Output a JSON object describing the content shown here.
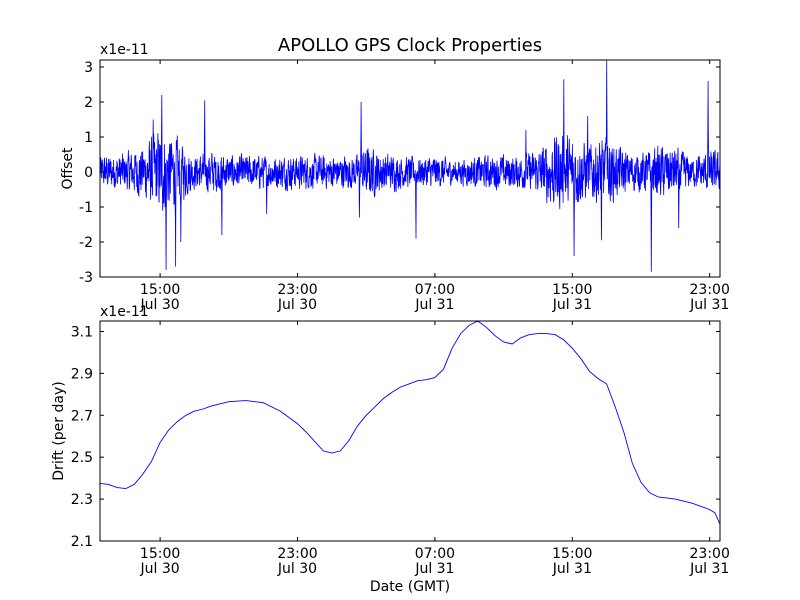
{
  "figure": {
    "title": "APOLLO GPS Clock Properties",
    "line_color": "#0000ff"
  },
  "chart_data": [
    {
      "type": "line",
      "title": "APOLLO GPS Clock Properties",
      "xlabel": "",
      "ylabel": "Offset",
      "scale_label": "x1e-11",
      "ylim": [
        -3,
        3.2
      ],
      "yticks": [
        -3,
        -2,
        -1,
        0,
        1,
        2,
        3
      ],
      "xlim": [
        11.5,
        47.6
      ],
      "xticks": [
        {
          "x": 15,
          "time": "15:00",
          "date": "Jul 30"
        },
        {
          "x": 23,
          "time": "23:00",
          "date": "Jul 30"
        },
        {
          "x": 31,
          "time": "07:00",
          "date": "Jul 31"
        },
        {
          "x": 39,
          "time": "15:00",
          "date": "Jul 31"
        },
        {
          "x": 47,
          "time": "23:00",
          "date": "Jul 31"
        }
      ],
      "series": [
        {
          "name": "Offset",
          "noise": {
            "x": [
              11.5,
              13.0,
              14.0,
              15.0,
              16.0,
              17.0,
              18.0,
              19.0,
              21.0,
              23.0,
              25.0,
              26.5,
              27.0,
              28.0,
              30.0,
              31.0,
              32.0,
              34.0,
              36.0,
              37.0,
              38.0,
              39.0,
              40.0,
              41.0,
              42.0,
              43.0,
              44.0,
              45.0,
              46.0,
              47.0,
              47.6
            ],
            "amplitude": [
              0.35,
              0.4,
              0.55,
              0.9,
              0.7,
              0.35,
              0.45,
              0.35,
              0.35,
              0.35,
              0.35,
              0.35,
              0.55,
              0.4,
              0.3,
              0.35,
              0.25,
              0.35,
              0.35,
              0.45,
              0.8,
              0.75,
              0.6,
              0.7,
              0.45,
              0.4,
              0.55,
              0.5,
              0.3,
              0.45,
              0.4
            ]
          },
          "spikes": [
            {
              "x": 14.6,
              "y": 1.5
            },
            {
              "x": 15.1,
              "y": 2.2
            },
            {
              "x": 15.35,
              "y": -2.8
            },
            {
              "x": 15.9,
              "y": -2.7
            },
            {
              "x": 16.2,
              "y": -2.0
            },
            {
              "x": 17.6,
              "y": 2.05
            },
            {
              "x": 18.6,
              "y": -1.8
            },
            {
              "x": 21.2,
              "y": -1.2
            },
            {
              "x": 26.7,
              "y": 2.0
            },
            {
              "x": 26.6,
              "y": -1.3
            },
            {
              "x": 29.9,
              "y": -1.9
            },
            {
              "x": 36.3,
              "y": 1.2
            },
            {
              "x": 38.5,
              "y": 2.65
            },
            {
              "x": 39.1,
              "y": -2.4
            },
            {
              "x": 39.9,
              "y": 1.6
            },
            {
              "x": 41.0,
              "y": 3.2
            },
            {
              "x": 40.7,
              "y": -1.95
            },
            {
              "x": 43.6,
              "y": -2.85
            },
            {
              "x": 46.9,
              "y": 2.6
            },
            {
              "x": 45.2,
              "y": -1.6
            }
          ]
        }
      ]
    },
    {
      "type": "line",
      "title": "",
      "xlabel": "Date (GMT)",
      "ylabel": "Drift (per day)",
      "scale_label": "x1e-11",
      "ylim": [
        2.1,
        3.15
      ],
      "yticks": [
        2.1,
        2.3,
        2.5,
        2.7,
        2.9,
        3.1
      ],
      "xlim": [
        11.5,
        47.6
      ],
      "xticks": [
        {
          "x": 15,
          "time": "15:00",
          "date": "Jul 30"
        },
        {
          "x": 23,
          "time": "23:00",
          "date": "Jul 30"
        },
        {
          "x": 31,
          "time": "07:00",
          "date": "Jul 31"
        },
        {
          "x": 39,
          "time": "15:00",
          "date": "Jul 31"
        },
        {
          "x": 47,
          "time": "23:00",
          "date": "Jul 31"
        }
      ],
      "series": [
        {
          "name": "Drift",
          "x": [
            11.5,
            12.0,
            12.5,
            13.0,
            13.5,
            14.0,
            14.5,
            15.0,
            15.5,
            16.0,
            16.5,
            17.0,
            17.5,
            18.0,
            19.0,
            20.0,
            21.0,
            22.0,
            23.0,
            23.5,
            24.0,
            24.5,
            25.0,
            25.5,
            26.0,
            26.5,
            27.0,
            27.5,
            28.0,
            28.5,
            29.0,
            29.5,
            30.0,
            30.5,
            31.0,
            31.5,
            32.0,
            32.5,
            33.0,
            33.5,
            34.0,
            34.5,
            35.0,
            35.5,
            36.0,
            36.5,
            37.0,
            37.5,
            38.0,
            38.5,
            39.0,
            39.5,
            40.0,
            40.5,
            41.0,
            41.5,
            42.0,
            42.5,
            43.0,
            43.5,
            44.0,
            45.0,
            46.0,
            47.0,
            47.3,
            47.6
          ],
          "values": [
            2.375,
            2.37,
            2.355,
            2.35,
            2.37,
            2.42,
            2.48,
            2.57,
            2.63,
            2.67,
            2.7,
            2.72,
            2.73,
            2.745,
            2.765,
            2.77,
            2.76,
            2.72,
            2.66,
            2.62,
            2.575,
            2.53,
            2.52,
            2.53,
            2.58,
            2.65,
            2.7,
            2.74,
            2.78,
            2.81,
            2.835,
            2.85,
            2.865,
            2.87,
            2.88,
            2.92,
            3.02,
            3.09,
            3.13,
            3.15,
            3.12,
            3.08,
            3.05,
            3.04,
            3.07,
            3.085,
            3.09,
            3.09,
            3.085,
            3.06,
            3.02,
            2.97,
            2.91,
            2.875,
            2.85,
            2.74,
            2.62,
            2.47,
            2.38,
            2.33,
            2.31,
            2.3,
            2.28,
            2.25,
            2.235,
            2.18
          ]
        }
      ]
    }
  ]
}
